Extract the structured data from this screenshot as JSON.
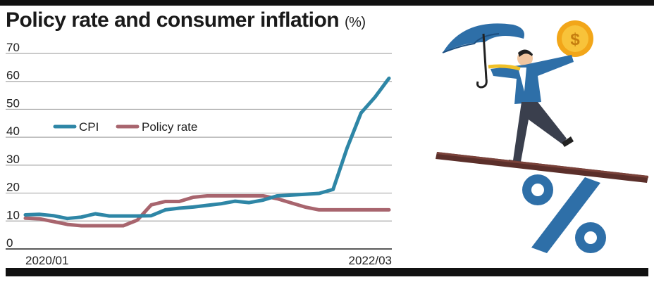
{
  "header": {
    "title": "Policy rate and consumer inflation",
    "unit": "(%)"
  },
  "colors": {
    "cpi": "#2e86a6",
    "policy_rate": "#a8656e",
    "grid": "#aaaaaa",
    "text": "#222222"
  },
  "chart_data": {
    "type": "line",
    "title": "Policy rate and consumer inflation (%)",
    "xlabel": "",
    "ylabel": "",
    "ylim": [
      0,
      70
    ],
    "yticks": [
      0,
      10,
      20,
      30,
      40,
      50,
      60,
      70
    ],
    "grid": true,
    "legend_position": "left-middle",
    "x_tick_labels": [
      "2020/01",
      "2022/03"
    ],
    "x": [
      "2020/01",
      "2020/02",
      "2020/03",
      "2020/04",
      "2020/05",
      "2020/06",
      "2020/07",
      "2020/08",
      "2020/09",
      "2020/10",
      "2020/11",
      "2020/12",
      "2021/01",
      "2021/02",
      "2021/03",
      "2021/04",
      "2021/05",
      "2021/06",
      "2021/07",
      "2021/08",
      "2021/09",
      "2021/10",
      "2021/11",
      "2021/12",
      "2022/01",
      "2022/02",
      "2022/03"
    ],
    "series": [
      {
        "name": "CPI",
        "color": "#2e86a6",
        "values": [
          12.2,
          12.4,
          11.9,
          10.9,
          11.4,
          12.6,
          11.8,
          11.8,
          11.8,
          11.9,
          14.0,
          14.6,
          15.0,
          15.6,
          16.2,
          17.1,
          16.6,
          17.5,
          19.0,
          19.3,
          19.6,
          19.9,
          21.3,
          36.1,
          48.7,
          54.4,
          61.1
        ]
      },
      {
        "name": "Policy rate",
        "color": "#a8656e",
        "values": [
          11.0,
          10.8,
          9.8,
          8.8,
          8.3,
          8.3,
          8.3,
          8.3,
          10.3,
          15.8,
          17.0,
          17.0,
          18.5,
          19.0,
          19.0,
          19.0,
          19.0,
          19.0,
          18.0,
          16.5,
          15.0,
          14.0,
          14.0,
          14.0,
          14.0,
          14.0,
          14.0
        ]
      }
    ]
  }
}
